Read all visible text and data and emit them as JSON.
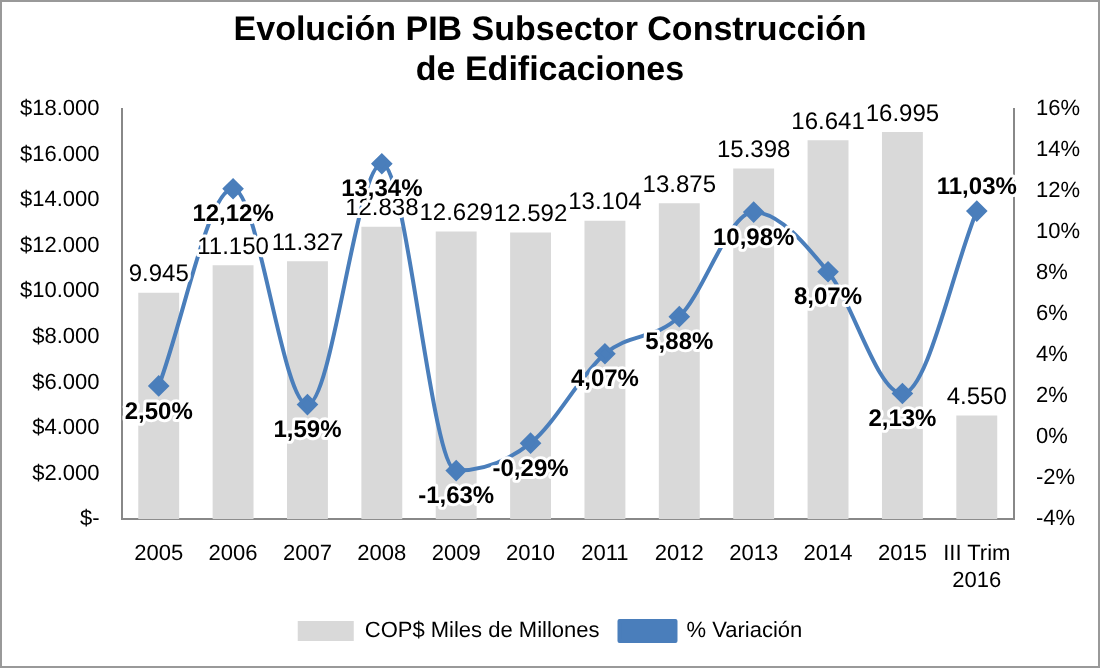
{
  "chart_data": {
    "type": "bar",
    "title": "Evolución PIB Subsector Construcción de Edificaciones",
    "categories": [
      "2005",
      "2006",
      "2007",
      "2008",
      "2009",
      "2010",
      "2011",
      "2012",
      "2013",
      "2014",
      "2015",
      "III Trim\n2016"
    ],
    "series": [
      {
        "name": "COP$ Miles de Millones",
        "color": "#d9d9d9",
        "values": [
          9945,
          11150,
          11327,
          12838,
          12629,
          12592,
          13104,
          13875,
          15398,
          16641,
          16995,
          4550
        ],
        "value_labels": [
          "9.945",
          "11.150",
          "11.327",
          "12.838",
          "12.629",
          "12.592",
          "13.104",
          "13.875",
          "15.398",
          "16.641",
          "16.995",
          "4.550"
        ]
      },
      {
        "name": "% Variación",
        "type": "line",
        "axis": "y2",
        "color": "#4a7ebb",
        "values": [
          2.5,
          12.12,
          1.59,
          13.34,
          -1.63,
          -0.29,
          4.07,
          5.88,
          10.98,
          8.07,
          2.13,
          11.03
        ],
        "value_labels": [
          "2,50%",
          "12,12%",
          "1,59%",
          "13,34%",
          "-1,63%",
          "-0,29%",
          "4,07%",
          "5,88%",
          "10,98%",
          "8,07%",
          "2,13%",
          "11,03%"
        ]
      }
    ],
    "ylim": [
      0,
      18000
    ],
    "yticks": [
      {
        "value": 0,
        "label": "$-"
      },
      {
        "value": 2000,
        "label": "$2.000"
      },
      {
        "value": 4000,
        "label": "$4.000"
      },
      {
        "value": 6000,
        "label": "$6.000"
      },
      {
        "value": 8000,
        "label": "$8.000"
      },
      {
        "value": 10000,
        "label": "$10.000"
      },
      {
        "value": 12000,
        "label": "$12.000"
      },
      {
        "value": 14000,
        "label": "$14.000"
      },
      {
        "value": 16000,
        "label": "$16.000"
      },
      {
        "value": 18000,
        "label": "$18.000"
      }
    ],
    "y2lim": [
      -4,
      16
    ],
    "y2ticks": [
      {
        "value": -4,
        "label": "-4%"
      },
      {
        "value": -2,
        "label": "-2%"
      },
      {
        "value": 0,
        "label": "0%"
      },
      {
        "value": 2,
        "label": "2%"
      },
      {
        "value": 4,
        "label": "4%"
      },
      {
        "value": 6,
        "label": "6%"
      },
      {
        "value": 8,
        "label": "8%"
      },
      {
        "value": 10,
        "label": "10%"
      },
      {
        "value": 12,
        "label": "12%"
      },
      {
        "value": 14,
        "label": "14%"
      },
      {
        "value": 16,
        "label": "16%"
      }
    ],
    "marker": "diamond",
    "grid": false,
    "legend": "bottom"
  }
}
